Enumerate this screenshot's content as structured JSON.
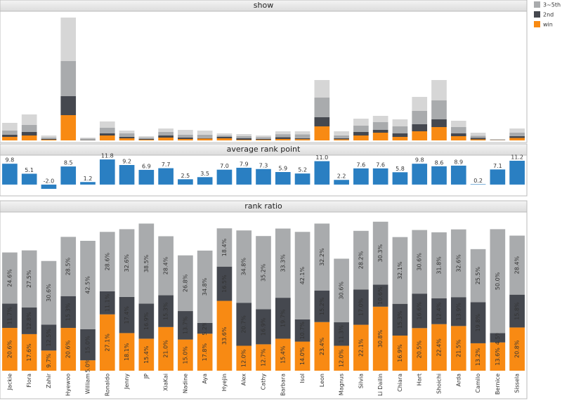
{
  "chart_data": [
    {
      "type": "bar",
      "title": "show",
      "stacked": true,
      "legend": "right",
      "ylim": [
        0,
        180
      ],
      "series": [
        {
          "name": "win",
          "color": "#f88a13",
          "values": [
            5,
            7,
            1,
            36,
            0.2,
            7,
            3,
            1,
            4,
            2,
            2.5,
            3,
            1,
            1,
            2,
            1.8,
            20,
            1.6,
            7,
            11,
            5,
            13,
            19,
            6,
            1.5,
            0.3,
            3.5
          ]
        },
        {
          "name": "2nd",
          "color": "#45484f",
          "values": [
            3,
            5,
            1,
            27,
            0.6,
            3,
            2,
            1,
            3,
            2,
            0.7,
            2,
            2,
            1,
            2.6,
            1.4,
            13,
            1.5,
            5,
            4,
            5,
            10,
            11,
            4,
            2.2,
            0.1,
            2.7
          ]
        },
        {
          "name": "3~5th",
          "color": "#a9abad",
          "values": [
            6,
            10,
            2,
            50,
            1.7,
            8,
            5,
            2,
            5,
            4,
            4.9,
            2,
            3,
            2.5,
            4.3,
            5.5,
            28,
            4,
            9,
            11,
            10,
            19,
            27,
            9,
            2.8,
            1,
            4.8
          ]
        },
        {
          "color": "#d6d6d6",
          "values": [
            11,
            15,
            3,
            62,
            1.5,
            9,
            4,
            2,
            5,
            7,
            5.9,
            3,
            3,
            2.5,
            4.1,
            4.3,
            25,
            5.9,
            10,
            9,
            10,
            20,
            29,
            9,
            4.5,
            0.6,
            6
          ]
        }
      ]
    },
    {
      "type": "bar",
      "title": "average rank point",
      "color": "#2a7fc2",
      "ylim": [
        -3,
        12.5
      ],
      "values": [
        9.8,
        5.1,
        -2.0,
        8.5,
        1.2,
        11.8,
        9.2,
        6.9,
        7.7,
        2.5,
        3.5,
        7.0,
        7.9,
        7.3,
        5.9,
        5.2,
        11.0,
        2.2,
        7.6,
        7.6,
        5.8,
        9.8,
        8.6,
        8.9,
        0.2,
        7.1,
        11.2
      ],
      "value_labels": [
        "9.8",
        "5.1",
        "-2.0",
        "8.5",
        "1.2",
        "11.8",
        "9.2",
        "6.9",
        "7.7",
        "2.5",
        "3.5",
        "7.0",
        "7.9",
        "7.3",
        "5.9",
        "5.2",
        "11.0",
        "2.2",
        "7.6",
        "7.6",
        "5.8",
        "9.8",
        "8.6",
        "8.9",
        "0.2",
        "7.1",
        "11.2"
      ]
    },
    {
      "type": "bar",
      "title": "rank ratio",
      "stacked": true,
      "ylim": [
        0,
        75
      ],
      "categories": [
        "Jackie",
        "Flora",
        "Zahir",
        "Hyewoo",
        "William",
        "Ronaldo",
        "Jenny",
        "JP",
        "XiaKai",
        "Nadine",
        "Aya",
        "Hyejin",
        "Alex",
        "Cathy",
        "Barbara",
        "Isol",
        "Leon",
        "Magnus",
        "Silvia",
        "Li Dailin",
        "Chiara",
        "Hart",
        "Shoichi",
        "Arda",
        "Camilo",
        "Bernice",
        "Sissela"
      ],
      "series": [
        {
          "name": "win",
          "color": "#f88a13",
          "values": [
            20.6,
            17.6,
            9.7,
            20.6,
            5.0,
            27.1,
            18.1,
            15.4,
            21.0,
            15.0,
            17.8,
            33.6,
            12.0,
            12.7,
            15.4,
            14.0,
            23.4,
            12.0,
            22.1,
            30.8,
            16.9,
            20.5,
            22.4,
            21.5,
            13.2,
            13.6,
            20.8
          ],
          "value_labels": [
            "20.6%",
            "17.6%",
            "9.7%",
            "20.6%",
            "5.0%",
            "27.1%",
            "18.1%",
            "15.4%",
            "21.0%",
            "15.0%",
            "17.8%",
            "33.6%",
            "12.0%",
            "12.7%",
            "15.4%",
            "14.0%",
            "23.4%",
            "12.0%",
            "22.1%",
            "30.8%",
            "16.9%",
            "20.5%",
            "22.4%",
            "21.5%",
            "13.2%",
            "13.6%",
            "20.8%"
          ]
        },
        {
          "name": "2nd",
          "color": "#45484f",
          "values": [
            11.7,
            12.8,
            12.5,
            15.3,
            15.0,
            11.1,
            17.4,
            16.9,
            15.3,
            13.7,
            5.2,
            16.5,
            20.7,
            16.9,
            19.7,
            10.7,
            15.2,
            11.3,
            17.0,
            10.6,
            15.3,
            16.6,
            12.4,
            13.9,
            19.8,
            4.5,
            15.8
          ],
          "value_labels": [
            "11.7%",
            "12.8%",
            "12.5%",
            "15.3%",
            "15.0%",
            "11.1%",
            "17.4%",
            "16.9%",
            "15.3%",
            "13.7%",
            "5.2%",
            "16.5%",
            "20.7%",
            "16.9%",
            "19.7%",
            "10.7%",
            "15.2%",
            "11.3%",
            "17.0%",
            "10.6%",
            "15.3%",
            "16.6%",
            "12.4%",
            "13.9%",
            "19.8%",
            "4.5%",
            "15.8%"
          ]
        },
        {
          "name": "3~5th",
          "color": "#a9abad",
          "values": [
            24.6,
            27.5,
            30.6,
            28.5,
            42.5,
            28.6,
            32.6,
            38.5,
            28.4,
            26.8,
            34.8,
            18.4,
            34.8,
            35.2,
            33.3,
            42.1,
            32.2,
            30.6,
            28.2,
            30.3,
            32.1,
            30.6,
            31.8,
            32.6,
            25.5,
            50.0,
            28.4
          ],
          "value_labels": [
            "24.6%",
            "27.5%",
            "30.6%",
            "28.5%",
            "42.5%",
            "28.6%",
            "32.6%",
            "38.5%",
            "28.4%",
            "26.8%",
            "34.8%",
            "18.4%",
            "34.8%",
            "35.2%",
            "33.3%",
            "42.1%",
            "32.2%",
            "30.6%",
            "28.2%",
            "30.3%",
            "32.1%",
            "30.6%",
            "31.8%",
            "32.6%",
            "25.5%",
            "50.0%",
            "28.4%"
          ]
        }
      ]
    }
  ]
}
